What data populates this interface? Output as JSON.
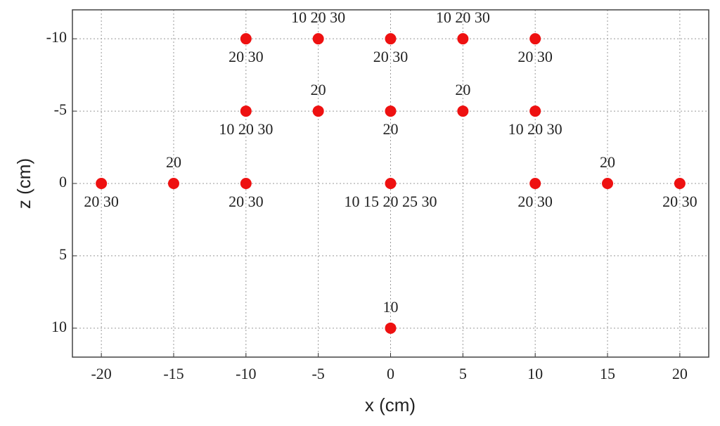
{
  "chart_data": {
    "type": "scatter",
    "x_label": "x (cm)",
    "y_label": "z (cm)",
    "x": [
      -10,
      -5,
      0,
      5,
      10,
      -10,
      -5,
      0,
      5,
      10,
      -20,
      -15,
      -10,
      0,
      10,
      15,
      20,
      0
    ],
    "values": [
      -10,
      -10,
      -10,
      -10,
      -10,
      -5,
      -5,
      -5,
      -5,
      -5,
      0,
      0,
      0,
      0,
      0,
      0,
      0,
      10
    ],
    "point_labels": [
      "20 30",
      "10 20 30",
      "20 30",
      "10 20 30",
      "20 30",
      "10 20 30",
      "20",
      "20",
      "20",
      "10 20 30",
      "20 30",
      "20",
      "20 30",
      "10 15 20 25 30",
      "20 30",
      "20",
      "20 30",
      "10"
    ],
    "color": "#ee1111",
    "xlim": [
      -22,
      22
    ],
    "ylim": [
      -12,
      12
    ],
    "y_inverted": true,
    "xticks": [
      -20,
      -15,
      -10,
      -5,
      0,
      5,
      10,
      15,
      20
    ],
    "yticks": [
      -10,
      -5,
      0,
      5,
      10
    ],
    "grid": true
  }
}
